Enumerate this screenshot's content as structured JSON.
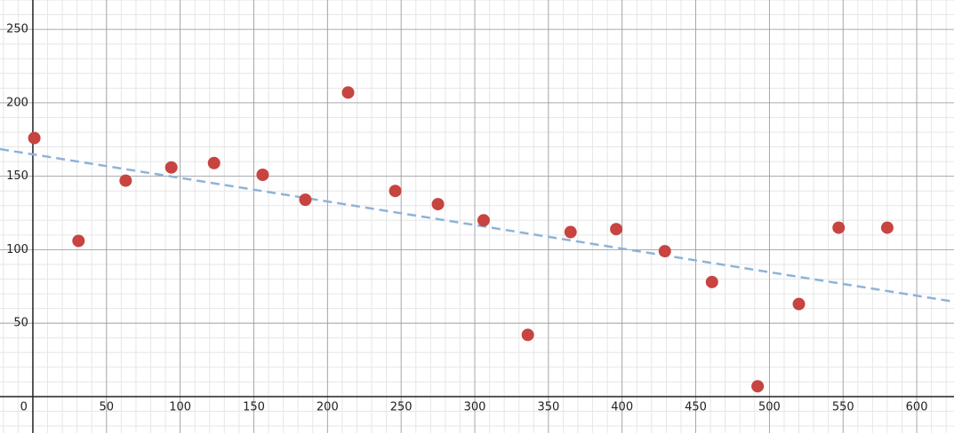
{
  "chart_data": {
    "type": "scatter",
    "series": [
      {
        "color": "#c74440",
        "x": [
          1,
          31,
          63,
          94,
          123,
          156,
          185,
          214,
          246,
          275,
          306,
          336,
          365,
          396,
          429,
          461,
          492,
          520,
          547,
          580
        ],
        "values": [
          176,
          106,
          147,
          156,
          159,
          151,
          134,
          207,
          140,
          131,
          120,
          42,
          112,
          114,
          99,
          78,
          7,
          63,
          115,
          115
        ]
      },
      {
        "type": "line",
        "color": "#8fb3d6",
        "dashed": true,
        "x": [
          -22.3,
          625.3
        ],
        "values": [
          168.5,
          64.6
        ]
      }
    ],
    "xlim": [
      -22.3,
      625.3
    ],
    "ylim": [
      -24.8,
      270
    ],
    "xticks": [
      0,
      50,
      100,
      150,
      200,
      250,
      300,
      350,
      400,
      450,
      500,
      550,
      600
    ],
    "yticks": [
      50,
      100,
      150,
      200,
      250
    ],
    "grid": true,
    "minor_grid": 10
  }
}
